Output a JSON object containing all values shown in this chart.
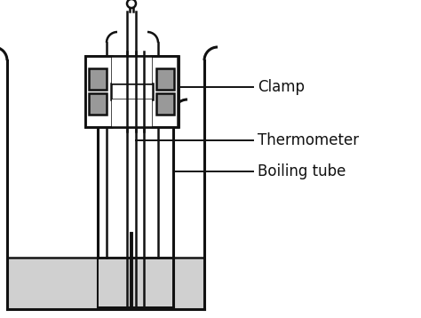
{
  "bg_color": "#ffffff",
  "line_color": "#111111",
  "pad_color": "#999999",
  "water_color": "#d0d0d0",
  "labels": {
    "clamp": "Clamp",
    "thermometer": "Thermometer",
    "boiling_tube": "Boiling tube"
  },
  "label_fontsize": 12,
  "figsize": [
    4.74,
    3.58
  ],
  "dpi": 100
}
